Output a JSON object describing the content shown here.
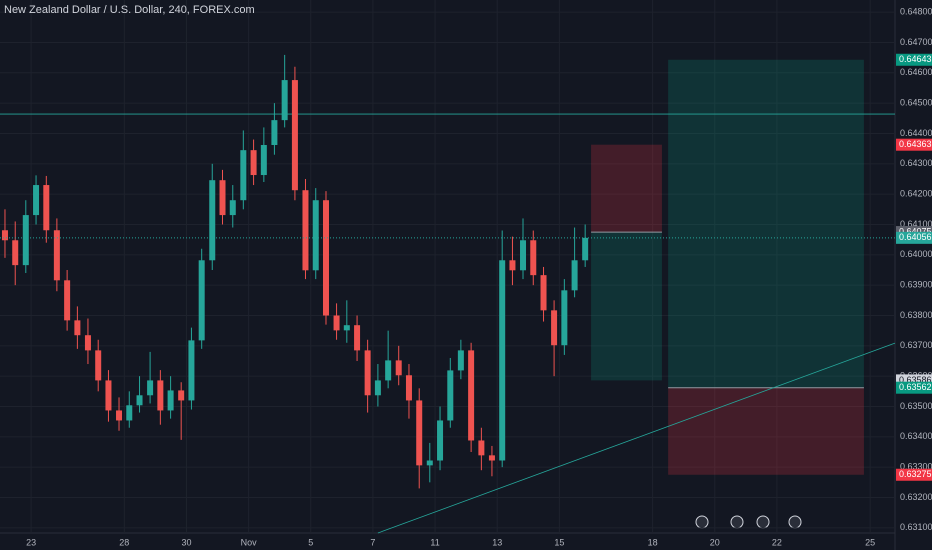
{
  "chart_data": {
    "type": "candlestick",
    "title": "New Zealand Dollar / U.S. Dollar, 240, FOREX.com",
    "up_color": "#26a69a",
    "down_color": "#ef5350",
    "xlim": [
      -1,
      27.8
    ],
    "xticks": [
      {
        "value": 0,
        "label": "23"
      },
      {
        "value": 3,
        "label": "28"
      },
      {
        "value": 5,
        "label": "30"
      },
      {
        "value": 7,
        "label": "Nov"
      },
      {
        "value": 9,
        "label": "5"
      },
      {
        "value": 11,
        "label": "7"
      },
      {
        "value": 13,
        "label": "11"
      },
      {
        "value": 15,
        "label": "13"
      },
      {
        "value": 17,
        "label": "15"
      },
      {
        "value": 20,
        "label": "18"
      },
      {
        "value": 22,
        "label": "20"
      },
      {
        "value": 24,
        "label": "22"
      },
      {
        "value": 27,
        "label": "25"
      }
    ],
    "ylim": [
      0.63083,
      0.6484
    ],
    "yticks": [
      {
        "value": 0.631,
        "label": "0.63100"
      },
      {
        "value": 0.632,
        "label": "0.63200"
      },
      {
        "value": 0.633,
        "label": "0.63300"
      },
      {
        "value": 0.634,
        "label": "0.63400"
      },
      {
        "value": 0.635,
        "label": "0.63500"
      },
      {
        "value": 0.636,
        "label": "0.63600"
      },
      {
        "value": 0.637,
        "label": "0.63700"
      },
      {
        "value": 0.638,
        "label": "0.63800"
      },
      {
        "value": 0.639,
        "label": "0.63900"
      },
      {
        "value": 0.64,
        "label": "0.64000"
      },
      {
        "value": 0.641,
        "label": "0.64100"
      },
      {
        "value": 0.642,
        "label": "0.64200"
      },
      {
        "value": 0.643,
        "label": "0.64300"
      },
      {
        "value": 0.644,
        "label": "0.64400"
      },
      {
        "value": 0.645,
        "label": "0.64500"
      },
      {
        "value": 0.646,
        "label": "0.64600"
      },
      {
        "value": 0.647,
        "label": "0.64700"
      },
      {
        "value": 0.648,
        "label": "0.64800"
      }
    ],
    "grid": true,
    "candles": {
      "x": [
        -0.84,
        -0.51,
        -0.17,
        0.16,
        0.49,
        0.83,
        1.16,
        1.49,
        1.83,
        2.16,
        2.49,
        2.83,
        3.16,
        3.49,
        3.83,
        4.16,
        4.49,
        4.83,
        5.16,
        5.49,
        5.83,
        6.16,
        6.49,
        6.83,
        7.16,
        7.49,
        7.83,
        8.16,
        8.49,
        8.83,
        9.16,
        9.49,
        9.83,
        10.16,
        10.49,
        10.83,
        11.16,
        11.49,
        11.83,
        12.16,
        12.49,
        12.83,
        13.16,
        13.49,
        13.83,
        14.16,
        14.49,
        14.83,
        15.16,
        15.49,
        15.83,
        16.16,
        16.49,
        16.83,
        17.16,
        17.49,
        17.83
      ],
      "open": [
        0.64081,
        0.64048,
        0.63966,
        0.64131,
        0.6423,
        0.64081,
        0.63916,
        0.63784,
        0.63735,
        0.63685,
        0.63586,
        0.63487,
        0.63454,
        0.63504,
        0.63537,
        0.63586,
        0.63487,
        0.63553,
        0.6352,
        0.63718,
        0.63982,
        0.64246,
        0.64131,
        0.6418,
        0.64345,
        0.64263,
        0.64362,
        0.64444,
        0.64576,
        0.64213,
        0.63949,
        0.6418,
        0.638,
        0.63751,
        0.63768,
        0.63685,
        0.63537,
        0.63586,
        0.63652,
        0.63603,
        0.6352,
        0.63306,
        0.63322,
        0.63454,
        0.63619,
        0.63685,
        0.63388,
        0.63339,
        0.63322,
        0.63982,
        0.63949,
        0.64048,
        0.63933,
        0.63817,
        0.63702,
        0.63883,
        0.63982
      ],
      "high": [
        0.6415,
        0.6411,
        0.6418,
        0.64262,
        0.6426,
        0.6412,
        0.6395,
        0.6383,
        0.6379,
        0.6372,
        0.6362,
        0.6353,
        0.6355,
        0.636,
        0.6368,
        0.6362,
        0.636,
        0.6358,
        0.6376,
        0.6402,
        0.643,
        0.6428,
        0.6423,
        0.6441,
        0.6438,
        0.6442,
        0.645,
        0.64659,
        0.6462,
        0.6425,
        0.6422,
        0.6421,
        0.6384,
        0.6385,
        0.638,
        0.6372,
        0.6364,
        0.6375,
        0.637,
        0.6364,
        0.6356,
        0.6338,
        0.635,
        0.6366,
        0.6372,
        0.6371,
        0.6343,
        0.6337,
        0.6408,
        0.6406,
        0.6412,
        0.6408,
        0.6396,
        0.6385,
        0.6392,
        0.6409,
        0.641
      ],
      "low": [
        0.6399,
        0.639,
        0.6394,
        0.641,
        0.6404,
        0.6388,
        0.6375,
        0.6369,
        0.6364,
        0.6355,
        0.6345,
        0.6342,
        0.6343,
        0.6348,
        0.6351,
        0.6344,
        0.6346,
        0.6339,
        0.6349,
        0.6369,
        0.6395,
        0.641,
        0.6409,
        0.6415,
        0.6423,
        0.6424,
        0.6433,
        0.6442,
        0.6418,
        0.6392,
        0.6392,
        0.6377,
        0.6372,
        0.6371,
        0.6365,
        0.6348,
        0.635,
        0.6356,
        0.6357,
        0.6346,
        0.6323,
        0.6325,
        0.6329,
        0.6343,
        0.6359,
        0.6335,
        0.6329,
        0.6327,
        0.633,
        0.639,
        0.6392,
        0.639,
        0.6378,
        0.636,
        0.6367,
        0.6386,
        0.6396
      ],
      "close": [
        0.64048,
        0.63966,
        0.64131,
        0.6423,
        0.64081,
        0.63916,
        0.63784,
        0.63735,
        0.63685,
        0.63586,
        0.63487,
        0.63454,
        0.63504,
        0.63537,
        0.63586,
        0.63487,
        0.63553,
        0.6352,
        0.63718,
        0.63982,
        0.64246,
        0.64131,
        0.6418,
        0.64345,
        0.64263,
        0.64362,
        0.64444,
        0.64576,
        0.64213,
        0.63949,
        0.6418,
        0.638,
        0.63751,
        0.63768,
        0.63685,
        0.63537,
        0.63586,
        0.63652,
        0.63603,
        0.6352,
        0.63306,
        0.63322,
        0.63454,
        0.63619,
        0.63685,
        0.63388,
        0.63339,
        0.63322,
        0.63982,
        0.63949,
        0.64048,
        0.63933,
        0.63817,
        0.63702,
        0.63883,
        0.63982,
        0.64056
      ]
    },
    "horizontal_line": 0.64464,
    "trend_line": {
      "x": [
        11.16,
        27.8
      ],
      "y": [
        0.63083,
        0.63709
      ]
    },
    "positions": [
      {
        "side": "short",
        "x": [
          18.02,
          20.3
        ],
        "stop": 0.64363,
        "entry": 0.64075,
        "target": 0.63586
      },
      {
        "side": "long",
        "x": [
          20.5,
          26.8
        ],
        "stop": 0.63275,
        "entry": 0.63562,
        "target": 0.64643
      }
    ]
  }
}
